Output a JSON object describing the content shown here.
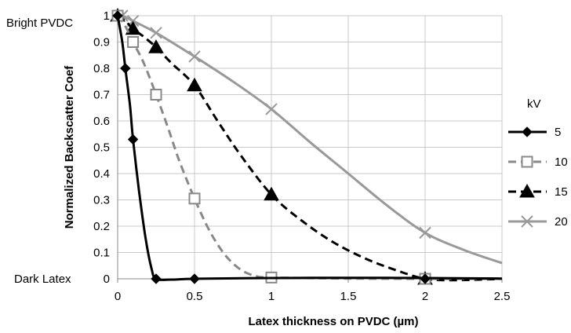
{
  "chart_data": {
    "type": "line",
    "title": "",
    "xlabel": "Latex thickness on PVDC (µm)",
    "ylabel": "Normalized Backscatter Coef",
    "xlim": [
      0,
      2.5
    ],
    "ylim": [
      0,
      1
    ],
    "xticks": [
      "0",
      "0.5",
      "1",
      "1.5",
      "2",
      "2.5"
    ],
    "yticks": [
      "0",
      "0.1",
      "0.2",
      "0.3",
      "0.4",
      "0.5",
      "0.6",
      "0.7",
      "0.8",
      "0.9",
      "1"
    ],
    "xtick_values": [
      0,
      0.5,
      1,
      1.5,
      2,
      2.5
    ],
    "ytick_values": [
      0,
      0.1,
      0.2,
      0.3,
      0.4,
      0.5,
      0.6,
      0.7,
      0.8,
      0.9,
      1
    ],
    "grid": true,
    "annotations": {
      "top": "Bright PVDC",
      "bottom": "Dark Latex"
    },
    "legend": {
      "title": "kV",
      "placement": "right"
    },
    "series": [
      {
        "name": "5",
        "color": "#000000",
        "dash": "solid",
        "marker": "diamond",
        "points": [
          [
            0,
            1.0
          ],
          [
            0.05,
            0.8
          ],
          [
            0.1,
            0.53
          ],
          [
            0.25,
            0.0
          ],
          [
            0.5,
            0.0
          ],
          [
            2,
            0.0
          ]
        ],
        "curve": [
          [
            0,
            1.0
          ],
          [
            0.03,
            0.9
          ],
          [
            0.05,
            0.8
          ],
          [
            0.08,
            0.66
          ],
          [
            0.1,
            0.53
          ],
          [
            0.14,
            0.33
          ],
          [
            0.18,
            0.16
          ],
          [
            0.22,
            0.04
          ],
          [
            0.25,
            0.0
          ],
          [
            0.35,
            -0.003
          ],
          [
            0.5,
            0.0
          ],
          [
            1.0,
            0.003
          ],
          [
            1.5,
            0.004
          ],
          [
            2,
            0.003
          ],
          [
            2.5,
            0.001
          ]
        ]
      },
      {
        "name": "10",
        "color": "#888888",
        "dash": "dashed",
        "marker": "square",
        "points": [
          [
            0,
            1.0
          ],
          [
            0.1,
            0.9
          ],
          [
            0.25,
            0.7
          ],
          [
            0.5,
            0.305
          ],
          [
            1,
            0.005
          ],
          [
            2,
            0.0
          ]
        ],
        "curve": [
          [
            0,
            1.0
          ],
          [
            0.05,
            0.96
          ],
          [
            0.1,
            0.9
          ],
          [
            0.17,
            0.82
          ],
          [
            0.25,
            0.7
          ],
          [
            0.33,
            0.57
          ],
          [
            0.4,
            0.45
          ],
          [
            0.5,
            0.305
          ],
          [
            0.6,
            0.18
          ],
          [
            0.7,
            0.09
          ],
          [
            0.8,
            0.035
          ],
          [
            0.9,
            0.01
          ],
          [
            1,
            0.005
          ],
          [
            1.5,
            0.001
          ],
          [
            2,
            0.0
          ],
          [
            2.5,
            0.0
          ]
        ]
      },
      {
        "name": "15",
        "color": "#000000",
        "dash": "dashed",
        "marker": "triangle",
        "points": [
          [
            0,
            1.0
          ],
          [
            0.1,
            0.95
          ],
          [
            0.25,
            0.88
          ],
          [
            0.5,
            0.735
          ],
          [
            1,
            0.32
          ],
          [
            2,
            0.0
          ]
        ],
        "curve": [
          [
            0,
            1.0
          ],
          [
            0.05,
            0.98
          ],
          [
            0.1,
            0.95
          ],
          [
            0.17,
            0.92
          ],
          [
            0.25,
            0.88
          ],
          [
            0.35,
            0.82
          ],
          [
            0.5,
            0.735
          ],
          [
            0.65,
            0.6
          ],
          [
            0.8,
            0.47
          ],
          [
            1,
            0.32
          ],
          [
            1.2,
            0.22
          ],
          [
            1.4,
            0.14
          ],
          [
            1.6,
            0.08
          ],
          [
            1.8,
            0.035
          ],
          [
            2,
            0.0
          ],
          [
            2.2,
            -0.005
          ],
          [
            2.5,
            0.0
          ]
        ]
      },
      {
        "name": "20",
        "color": "#999999",
        "dash": "solid",
        "marker": "x",
        "points": [
          [
            0.03,
            1.0
          ],
          [
            0.1,
            0.98
          ],
          [
            0.25,
            0.935
          ],
          [
            0.5,
            0.845
          ],
          [
            1,
            0.645
          ],
          [
            2,
            0.175
          ]
        ],
        "curve": [
          [
            0,
            1.0
          ],
          [
            0.03,
            1.0
          ],
          [
            0.1,
            0.98
          ],
          [
            0.25,
            0.935
          ],
          [
            0.5,
            0.845
          ],
          [
            0.75,
            0.75
          ],
          [
            1,
            0.645
          ],
          [
            1.25,
            0.52
          ],
          [
            1.5,
            0.4
          ],
          [
            1.75,
            0.28
          ],
          [
            2,
            0.175
          ],
          [
            2.25,
            0.11
          ],
          [
            2.5,
            0.06
          ]
        ]
      }
    ]
  }
}
